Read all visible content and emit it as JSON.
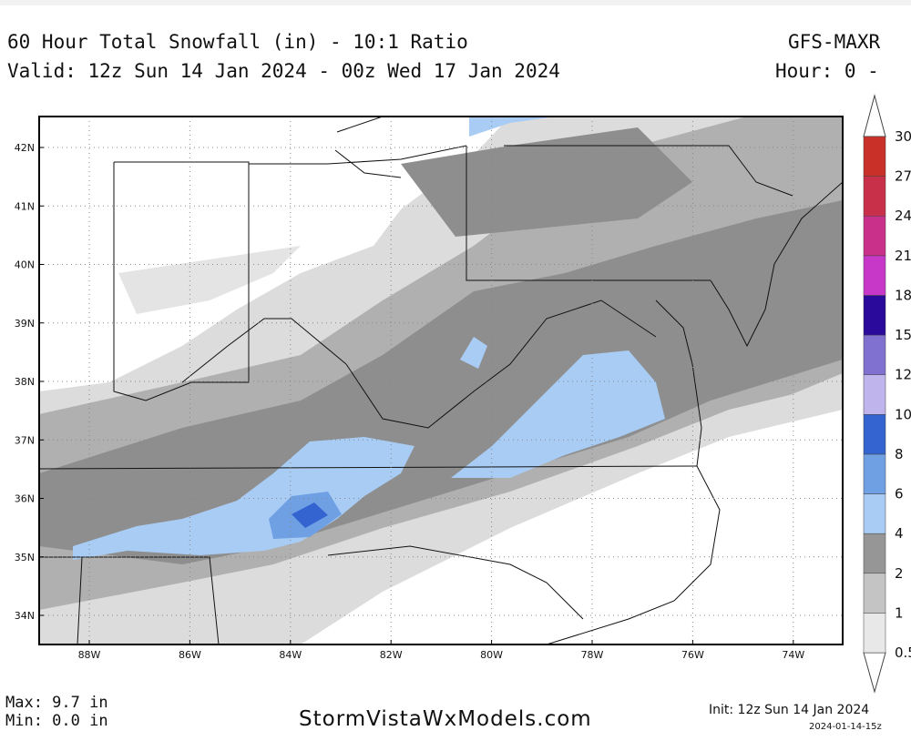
{
  "header": {
    "title": "60 Hour Total Snowfall (in) - 10:1 Ratio",
    "model": "GFS-MAXR",
    "valid": "Valid: 12z Sun 14 Jan 2024 - 00z Wed 17 Jan 2024",
    "hour": "Hour: 0 -"
  },
  "map": {
    "lat_labels": [
      "42N",
      "41N",
      "40N",
      "39N",
      "38N",
      "37N",
      "36N",
      "35N",
      "34N"
    ],
    "lon_labels": [
      "88W",
      "86W",
      "84W",
      "82W",
      "80W",
      "78W",
      "76W",
      "74W"
    ],
    "colorbar": {
      "levels": [
        0.5,
        1,
        2,
        4,
        6,
        8,
        10,
        12,
        15,
        18,
        21,
        24,
        27,
        30
      ],
      "colors": [
        "#e8e8e8",
        "#c4c4c4",
        "#969696",
        "#a8ccf4",
        "#70a0e4",
        "#3464d0",
        "#c0b4ec",
        "#8070d0",
        "#2a0a9a",
        "#c838c8",
        "#c8308a",
        "#c8304a",
        "#c83028"
      ]
    }
  },
  "footer": {
    "max": "Max: 9.7 in",
    "min": "Min: 0.0 in",
    "site": "StormVistaWxModels.com",
    "init": "Init: 12z Sun 14 Jan 2024",
    "timestamp": "2024-01-14-15z"
  }
}
